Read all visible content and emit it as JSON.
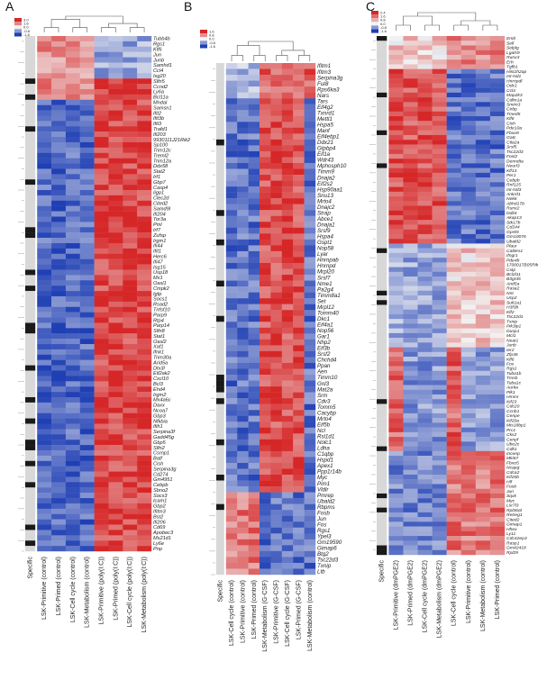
{
  "figure": {
    "panels": [
      {
        "letter": "A",
        "legend_ticks": [
          "3.0",
          "1.6",
          "0.0",
          "-0.8",
          "-1.6"
        ],
        "columns": [
          "Specific",
          "LSK-Primitive (control)",
          "LSK-Primed (control)",
          "LSK-Cell cycle (control)",
          "LSK-Metabolism (control)",
          "LSK-Primitive (poly(I:C))",
          "LSK-Primed (poly(I:C))",
          "LSK-Cell cycle (poly(I:C))",
          "LSK-Metabolism (poly(I:C))"
        ],
        "genes": [
          "Tubb4b",
          "Rgs1",
          "Klf6",
          "Jun",
          "Junb",
          "Samhd1",
          "Ccl4",
          "Isg20",
          "Slfn5",
          "Ccnd2",
          "Ly6a",
          "Bcl11a",
          "Mndal",
          "Samsn1",
          "Ifit2",
          "Ifit3b",
          "Ifit3",
          "Trafd1",
          "Ifi203",
          "9930111J21Rik2",
          "Sp100",
          "Trim12c",
          "Treml2",
          "Trim12a",
          "Ddx58",
          "Stat2",
          "Irf1",
          "Gbp7",
          "Casp4",
          "Iigp1",
          "Clec2d",
          "Cited2",
          "Samd9l",
          "Ifi204",
          "Tor3a",
          "Pml",
          "Irf7",
          "Zufsp",
          "Irgm1",
          "Ifi44",
          "Ifit1",
          "Herc6",
          "Ifi47",
          "Isg15",
          "Usp18",
          "Mx1",
          "Oasl1",
          "Cmpk2",
          "Igtp",
          "Socs1",
          "Rsad2",
          "Tnfsf10",
          "Parp9",
          "Rtp4",
          "Parp14",
          "Slfn8",
          "Stat1",
          "Oasl2",
          "Xaf1",
          "Ifnk1",
          "Trim30a",
          "Arid5a",
          "Dtx3l",
          "Eif2ak2",
          "Cxcl10",
          "Bcl3",
          "Ehd4",
          "Irgm2",
          "Mx4a6c",
          "Daxx",
          "Ncoa7",
          "Gbp3",
          "Nfkbia",
          "Ifih1",
          "Serpina3f",
          "Gadd45g",
          "Gbp5",
          "Slfn2",
          "Csrnp1",
          "Batf",
          "Cish",
          "Serpina3g",
          "Cd274",
          "Gm4951",
          "Cebpb",
          "Sbno2",
          "Socs3",
          "Icam1",
          "Gbp2",
          "Ifitm3",
          "Bst2",
          "Ifi206",
          "Cd69",
          "Apobec3",
          "Ms21d1",
          "Ly6e",
          "Pnp"
        ]
      },
      {
        "letter": "B",
        "legend_ticks": [
          "1.6",
          "0.8",
          "0.0",
          "-0.8",
          "-1.6"
        ],
        "columns": [
          "Specific",
          "LSK-Cell cycle (control)",
          "LSK-Primitive (control)",
          "LSK-Primed (control)",
          "LSK-Metabolism (G-CSF)",
          "LSK-Primitive (G-CSF)",
          "LSK-Cell cycle (G-CSF)",
          "LSK-Primed (G-CSF)",
          "LSK-Metabolism (control)"
        ],
        "genes": [
          "Ifitm1",
          "Ifitm3",
          "Serpina3g",
          "Fut8",
          "Rps6ka3",
          "Nars",
          "Tars",
          "Eif4g2",
          "Txnrd1",
          "Mettl1",
          "Hspa5",
          "Manf",
          "Eif4ebp1",
          "Ddx21",
          "Gtpbp4",
          "Eif1a",
          "Wdr43",
          "Mphosph10",
          "Timm9",
          "Dnaja2",
          "Eif2s2",
          "Hsp90aa1",
          "Snu13",
          "Mrto4",
          "Dnajc2",
          "Strap",
          "Abce1",
          "Dnaja1",
          "Srsf9",
          "Hspa4",
          "Gspt1",
          "Nop58",
          "Lyar",
          "Hnrnpab",
          "Hnrnpd",
          "Mrpl20",
          "Srsf7",
          "Nme1",
          "Pa2g4",
          "Timm8a1",
          "Set",
          "Mrpl12",
          "Tomm40",
          "Dkc1",
          "Eif4a1",
          "Nop56",
          "Gar1",
          "Nhp2",
          "Eif3b",
          "Srsf2",
          "Chchd4",
          "Ppan",
          "Aen",
          "Timm10",
          "Gnl3",
          "Mat2a",
          "Srm",
          "Cdv3",
          "Tomm5",
          "Cacybp",
          "Mrto4",
          "Eif5b",
          "Ncl",
          "Rsl1d1",
          "Nolc1",
          "Ldha",
          "C1qbp",
          "Hspd1",
          "Apex1",
          "Ppp1r14b",
          "Myc",
          "Pim1",
          "Vldlr",
          "Pmrep",
          "Ubald2",
          "Rbpms",
          "Fosb",
          "Jun",
          "Fos",
          "Rgs1",
          "Ypel3",
          "Gm19590",
          "Gimap6",
          "Btg2",
          "Tsc22d3",
          "Txnip",
          "Ltb"
        ]
      },
      {
        "letter": "C",
        "legend_ticks": [
          "2.4",
          "1.6",
          "0.8",
          "0.0",
          "-0.8",
          "-1.6"
        ],
        "columns": [
          "Specific",
          "LSK-Primitive (dmPGE2)",
          "LSK-Primed (dmPGE2)",
          "LSK-Cell cycle (dmPGE2)",
          "LSK-Metabolism (dmPGE2)",
          "LSK-Cell cycle (control)",
          "LSK-Primitive (control)",
          "LSK-Metabolism (control)",
          "LSK-Primed (control)"
        ],
        "genes": [
          "Emb",
          "Sell",
          "Selplg",
          "Lgals9",
          "Runx3",
          "Erh",
          "Tgfb1",
          "Hist1h2ap",
          "mt-Nd1",
          "Hnrnpdl",
          "Odc1",
          "Ccl4",
          "Map2k3",
          "Cdkn1a",
          "Smim3",
          "Cirbp",
          "Tmed5",
          "Klf6",
          "Cish",
          "Pde10a",
          "Fbxo9",
          "Gatc",
          "Ctla2a",
          "Srsf5",
          "Tsc22d3",
          "Fosl2",
          "Denndta",
          "Neurl3",
          "Klf13",
          "Per1",
          "Cebpb",
          "Rnf125",
          "mt-Nd3",
          "Ankrd1",
          "Nek6",
          "Abhd17b",
          "Runx2",
          "Ddit4",
          "Akap13",
          "Stk17b",
          "Cd244",
          "Gpr65",
          "Gm10076",
          "Ubald2",
          "Plaur",
          "Cables1",
          "Ifngr1",
          "Pde4b",
          "1700017B05Rik",
          "Cxtp",
          "Bcl2l11",
          "B3gnt5",
          "Arid5a",
          "Rasa2",
          "Nnt",
          "Ucp2",
          "Sult1a1",
          "H3f3b",
          "Klf2",
          "Tsc22d1",
          "Txnip",
          "Pik3ip1",
          "Dusp1",
          "Mcl1",
          "Neat1",
          "Junb",
          "Ier2",
          "Zfp36",
          "Klf6",
          "Fos",
          "Rgs1",
          "Tuba1b",
          "Tmsb",
          "Tuba1c",
          "Aurka",
          "Plk1",
          "Hmmr",
          "Kif23",
          "Cdc20",
          "Ccnb1",
          "Cenpe",
          "Kif20a",
          "Mis18bp1",
          "Prc1",
          "Cks2",
          "Cenpf",
          "Ube2c",
          "Cdk1",
          "Incenp",
          "Mki67",
          "Fbxo5",
          "Ncapg",
          "Cdca2",
          "Kif20b",
          "Hlf",
          "Fosb",
          "Jun",
          "Sqxk",
          "Myc",
          "Lsr7l3",
          "Rpl36al",
          "Retreg1",
          "Cited2",
          "Gimap1",
          "Hhex",
          "Ly11",
          "Cdc42ep3",
          "Rasp1",
          "Gm42418",
          "Rpl29"
        ]
      }
    ],
    "colors": {
      "high": "#d62728",
      "mid": "#f2f2f2",
      "low": "#1f3fb4",
      "specific_on": "#1a1a1a",
      "specific_off": "#d8d8d8"
    }
  }
}
